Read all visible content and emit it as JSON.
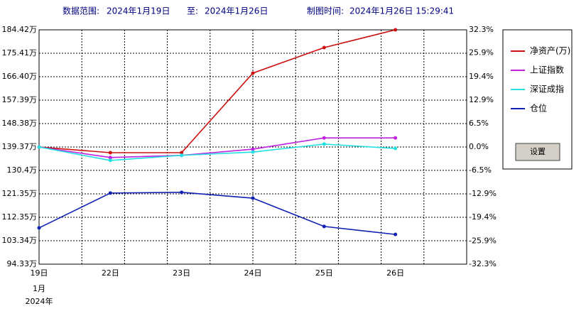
{
  "header": {
    "range_label": "数据范围:",
    "start": "2024年1月19日",
    "to_label": "至:",
    "end": "2024年1月26日",
    "time_label": "制图时间:",
    "time": "2024年1月26日 15:29:41"
  },
  "button": "设置",
  "chart_data": {
    "type": "line",
    "categories": [
      "19日",
      "22日",
      "23日",
      "24日",
      "25日",
      "26日"
    ],
    "x_sublabels": [
      "1月",
      "2024年"
    ],
    "ylim": [
      94.33,
      184.42
    ],
    "yticks": [
      {
        "value": 184.42,
        "label": "184.42万"
      },
      {
        "value": 175.41,
        "label": "175.41万"
      },
      {
        "value": 166.4,
        "label": "166.40万"
      },
      {
        "value": 157.39,
        "label": "157.39万"
      },
      {
        "value": 148.38,
        "label": "148.38万"
      },
      {
        "value": 139.37,
        "label": "139.37万"
      },
      {
        "value": 130.4,
        "label": "130.4万"
      },
      {
        "value": 121.35,
        "label": "121.35万"
      },
      {
        "value": 112.35,
        "label": "112.35万"
      },
      {
        "value": 103.34,
        "label": "103.34万"
      },
      {
        "value": 94.33,
        "label": "94.33万"
      }
    ],
    "y2lim": [
      -32.3,
      32.3
    ],
    "y2ticks": [
      {
        "value": 32.3,
        "label": "32.3%"
      },
      {
        "value": 25.9,
        "label": "25.9%"
      },
      {
        "value": 19.4,
        "label": "19.4%"
      },
      {
        "value": 12.9,
        "label": "12.9%"
      },
      {
        "value": 6.5,
        "label": "6.5%"
      },
      {
        "value": 0,
        "label": "0.0%"
      },
      {
        "value": -6.5,
        "label": "-6.5%"
      },
      {
        "value": -12.9,
        "label": "-12.9%"
      },
      {
        "value": -19.4,
        "label": "-19.4%"
      },
      {
        "value": -25.9,
        "label": "-25.9%"
      },
      {
        "value": -32.3,
        "label": "-32.3%"
      }
    ],
    "grid": true,
    "series": [
      {
        "name": "净资产(万)",
        "color": "#cc1010",
        "values": [
          139.37,
          137.19,
          137.19,
          167.77,
          177.6,
          184.42
        ]
      },
      {
        "name": "上证指数",
        "color": "#c020e0",
        "axis": "y2",
        "values": [
          0,
          -2.9,
          -2.3,
          -0.6,
          2.5,
          2.5
        ]
      },
      {
        "name": "深证成指",
        "color": "#20e0e0",
        "axis": "y2",
        "values": [
          0,
          -3.7,
          -2.3,
          -1.4,
          0.8,
          -0.4
        ]
      },
      {
        "name": "仓位",
        "color": "#1020b0",
        "axis": "y2",
        "values": [
          -22.3,
          -12.7,
          -12.5,
          -14.1,
          -21.9,
          -24.1
        ]
      }
    ]
  }
}
